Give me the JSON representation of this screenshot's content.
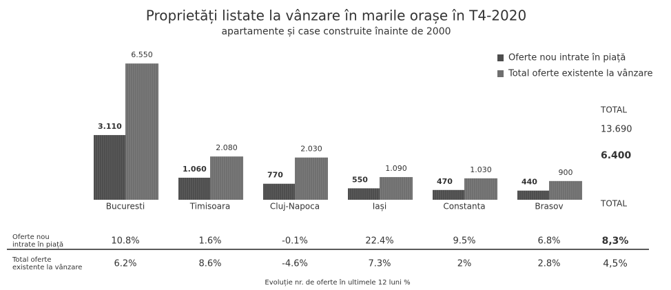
{
  "chart_data": {
    "type": "bar",
    "title": "Proprietăți listate la vânzare în marile orașe în T4-2020",
    "subtitle": "apartamente și case construite înainte de 2000",
    "categories": [
      "Bucuresti",
      "Timisoara",
      "Cluj-Napoca",
      "Iași",
      "Constanta",
      "Brasov"
    ],
    "series": [
      {
        "name": "Oferte nou intrate în piață",
        "color": "#4d4d4d",
        "values": [
          3110,
          1060,
          770,
          550,
          470,
          440
        ],
        "value_labels": [
          "3.110",
          "1.060",
          "770",
          "550",
          "470",
          "440"
        ]
      },
      {
        "name": "Total oferte existente la vânzare",
        "color": "#6f6f6f",
        "values": [
          6550,
          2080,
          2030,
          1090,
          1030,
          900
        ],
        "value_labels": [
          "6.550",
          "2.080",
          "2.030",
          "1.090",
          "1.030",
          "900"
        ]
      }
    ],
    "totals_header": "TOTAL",
    "totals": [
      {
        "value": 13690,
        "label": "13.690"
      },
      {
        "value": 6400,
        "label": "6.400"
      }
    ],
    "table": {
      "header": "TOTAL",
      "rows": [
        {
          "label": "Oferte nou intrate în piață",
          "values": [
            "10.8%",
            "1.6%",
            "-0.1%",
            "22.4%",
            "9.5%",
            "6.8%"
          ],
          "total": "8,3%"
        },
        {
          "label": "Total oferte existente la vânzare",
          "values": [
            "6.2%",
            "8.6%",
            "-4.6%",
            "7.3%",
            "2%",
            "2.8%"
          ],
          "total": "4,5%"
        }
      ],
      "caption": "Evoluție nr. de oferte în ultimele 12 luni %"
    }
  }
}
